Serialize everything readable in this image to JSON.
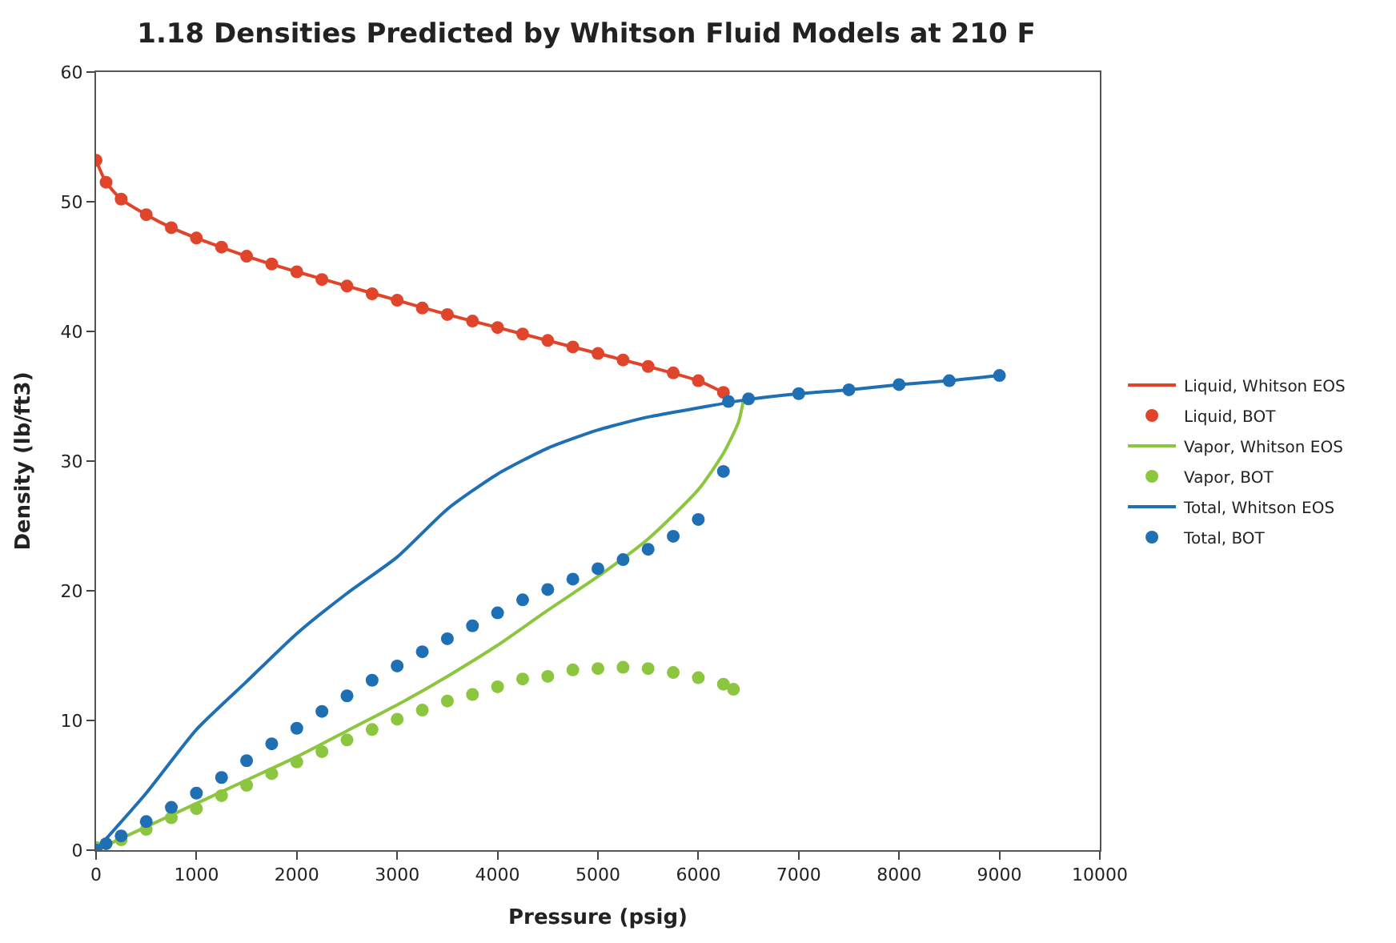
{
  "chart_data": {
    "type": "line",
    "title": "1.18 Densities Predicted by Whitson Fluid Models at 210 F",
    "xlabel": "Pressure (psig)",
    "ylabel": "Density (lb/ft3)",
    "xlim": [
      0,
      10000
    ],
    "xticks": [
      0,
      1000,
      2000,
      3000,
      4000,
      5000,
      6000,
      7000,
      8000,
      9000,
      10000
    ],
    "ylim": [
      0,
      60
    ],
    "yticks": [
      0,
      10,
      20,
      30,
      40,
      50,
      60
    ],
    "legend": "right",
    "series": [
      {
        "name": "Liquid, Whitson EOS",
        "marker": "none",
        "color": "#e0442a",
        "x": [
          0,
          100,
          250,
          500,
          750,
          1000,
          1500,
          2000,
          2500,
          3000,
          3500,
          4000,
          4500,
          5000,
          5500,
          6000,
          6300
        ],
        "values": [
          53.2,
          51.5,
          50.2,
          49.0,
          48.0,
          47.2,
          45.8,
          44.6,
          43.5,
          42.4,
          41.3,
          40.3,
          39.3,
          38.3,
          37.3,
          36.2,
          35.1
        ]
      },
      {
        "name": "Liquid, BOT",
        "type": "scatter",
        "marker": "circle",
        "color": "#e0442a",
        "x": [
          0,
          100,
          250,
          500,
          750,
          1000,
          1250,
          1500,
          1750,
          2000,
          2250,
          2500,
          2750,
          3000,
          3250,
          3500,
          3750,
          4000,
          4250,
          4500,
          4750,
          5000,
          5250,
          5500,
          5750,
          6000,
          6250
        ],
        "values": [
          53.2,
          51.5,
          50.2,
          49.0,
          48.0,
          47.2,
          46.5,
          45.8,
          45.2,
          44.6,
          44.0,
          43.5,
          42.9,
          42.4,
          41.8,
          41.3,
          40.8,
          40.3,
          39.8,
          39.3,
          38.8,
          38.3,
          37.8,
          37.3,
          36.8,
          36.2,
          35.3
        ]
      },
      {
        "name": "Vapor, Whitson EOS",
        "marker": "none",
        "color": "#8cc63f",
        "x": [
          0,
          500,
          1000,
          1500,
          2000,
          2500,
          3000,
          3500,
          4000,
          4500,
          5000,
          5500,
          6000,
          6250,
          6400,
          6450
        ],
        "values": [
          0,
          1.8,
          3.6,
          5.4,
          7.2,
          9.2,
          11.2,
          13.4,
          15.8,
          18.5,
          21.1,
          24.0,
          27.8,
          30.6,
          33.0,
          34.7
        ]
      },
      {
        "name": "Vapor, BOT",
        "type": "scatter",
        "marker": "circle",
        "color": "#8cc63f",
        "x": [
          0,
          250,
          500,
          750,
          1000,
          1250,
          1500,
          1750,
          2000,
          2250,
          2500,
          2750,
          3000,
          3250,
          3500,
          3750,
          4000,
          4250,
          4500,
          4750,
          5000,
          5250,
          5500,
          5750,
          6000,
          6250,
          6350
        ],
        "values": [
          0.2,
          0.8,
          1.6,
          2.5,
          3.2,
          4.2,
          5.0,
          5.9,
          6.8,
          7.6,
          8.5,
          9.3,
          10.1,
          10.8,
          11.5,
          12.0,
          12.6,
          13.2,
          13.4,
          13.9,
          14.0,
          14.1,
          14.0,
          13.7,
          13.3,
          12.8,
          12.4
        ]
      },
      {
        "name": "Total, Whitson EOS",
        "marker": "none",
        "color": "#1f6fb5",
        "x": [
          0,
          500,
          1000,
          1500,
          2000,
          2500,
          3000,
          3500,
          4000,
          4500,
          5000,
          5500,
          6000,
          6450,
          7000,
          7500,
          8000,
          8500,
          9000
        ],
        "values": [
          0,
          4.4,
          9.3,
          13.0,
          16.7,
          19.8,
          22.6,
          26.3,
          29.0,
          31.0,
          32.4,
          33.4,
          34.1,
          34.7,
          35.2,
          35.5,
          35.9,
          36.2,
          36.6
        ]
      },
      {
        "name": "Total, BOT",
        "type": "scatter",
        "marker": "circle",
        "color": "#1f6fb5",
        "x": [
          0,
          100,
          250,
          500,
          750,
          1000,
          1250,
          1500,
          1750,
          2000,
          2250,
          2500,
          2750,
          3000,
          3250,
          3500,
          3750,
          4000,
          4250,
          4500,
          4750,
          5000,
          5250,
          5500,
          5750,
          6000,
          6250,
          6300,
          6500,
          7000,
          7500,
          8000,
          8500,
          9000
        ],
        "values": [
          0,
          0.5,
          1.1,
          2.2,
          3.3,
          4.4,
          5.6,
          6.9,
          8.2,
          9.4,
          10.7,
          11.9,
          13.1,
          14.2,
          15.3,
          16.3,
          17.3,
          18.3,
          19.3,
          20.1,
          20.9,
          21.7,
          22.4,
          23.2,
          24.2,
          25.5,
          29.2,
          34.6,
          34.8,
          35.2,
          35.5,
          35.9,
          36.2,
          36.6
        ]
      }
    ]
  }
}
